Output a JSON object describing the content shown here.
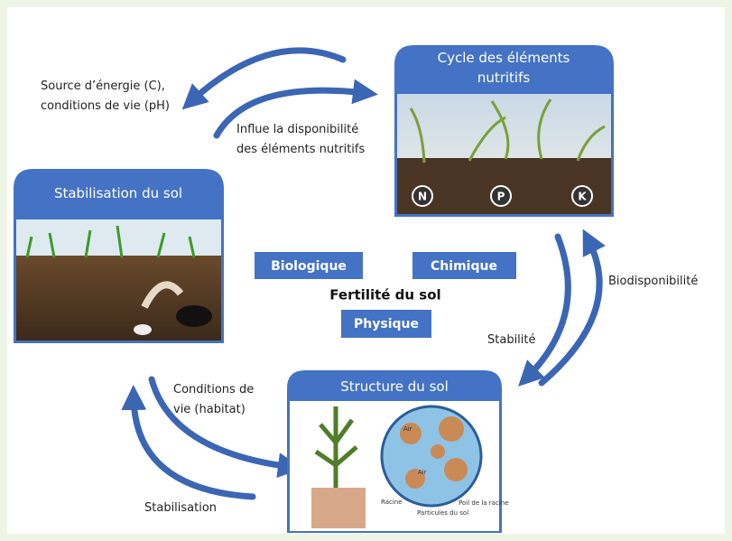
{
  "center": {
    "title": "Fertilité du sol",
    "tags": [
      "Biologique",
      "Chimique",
      "Physique"
    ]
  },
  "nodes": [
    {
      "title_lines": [
        "Cycle des éléments",
        "nutritifs"
      ],
      "image_labels": [
        "N",
        "P",
        "K"
      ]
    },
    {
      "title_lines": [
        "Stabilisation du sol"
      ]
    },
    {
      "title_lines": [
        "Structure du sol"
      ],
      "image_labels": [
        "Air",
        "Air",
        "Racine",
        "Poil de la racine",
        "Particules du sol"
      ]
    }
  ],
  "edges": [
    {
      "lines": [
        "Source d’énergie (C),",
        "conditions de vie (pH)"
      ]
    },
    {
      "lines": [
        "Influe la disponibilité",
        "des éléments nutritifs"
      ]
    },
    {
      "lines": [
        "Stabilité"
      ]
    },
    {
      "lines": [
        "Biodisponibilité"
      ]
    },
    {
      "lines": [
        "Conditions de",
        "vie (habitat)"
      ]
    },
    {
      "lines": [
        "Stabilisation"
      ]
    }
  ]
}
